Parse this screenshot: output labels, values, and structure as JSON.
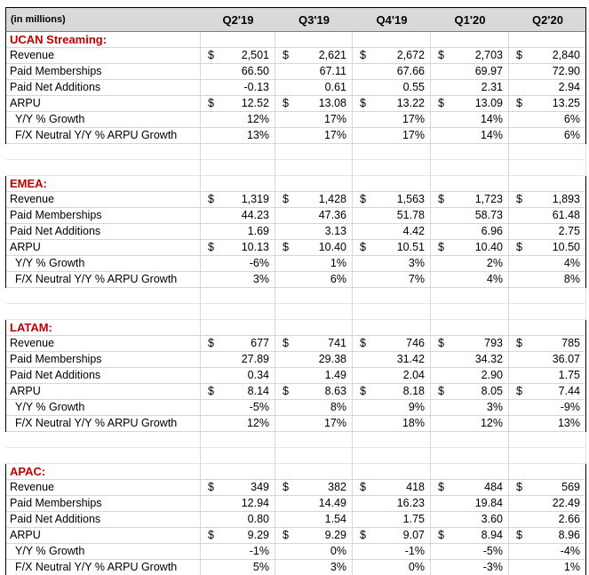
{
  "table": {
    "unit_label": "(in millions)",
    "currency_symbol": "$",
    "quarters": [
      "Q2'19",
      "Q3'19",
      "Q4'19",
      "Q1'20",
      "Q2'20"
    ],
    "colors": {
      "section_header_text": "#c00000",
      "header_background": "#d9d9d9",
      "gridline": "#d6d6d6",
      "outer_border": "#000000"
    },
    "sections": [
      {
        "name": "UCAN Streaming:",
        "rows": [
          {
            "label": "Revenue",
            "currency": true,
            "indent": false,
            "values": [
              "2,501",
              "2,621",
              "2,672",
              "2,703",
              "2,840"
            ]
          },
          {
            "label": "Paid Memberships",
            "currency": false,
            "indent": false,
            "values": [
              "66.50",
              "67.11",
              "67.66",
              "69.97",
              "72.90"
            ]
          },
          {
            "label": "Paid Net Additions",
            "currency": false,
            "indent": false,
            "values": [
              "-0.13",
              "0.61",
              "0.55",
              "2.31",
              "2.94"
            ]
          },
          {
            "label": "ARPU",
            "currency": true,
            "indent": false,
            "values": [
              "12.52",
              "13.08",
              "13.22",
              "13.09",
              "13.25"
            ]
          },
          {
            "label": "Y/Y % Growth",
            "currency": false,
            "indent": true,
            "values": [
              "12%",
              "17%",
              "17%",
              "14%",
              "6%"
            ]
          },
          {
            "label": "F/X Neutral Y/Y % ARPU Growth",
            "currency": false,
            "indent": true,
            "values": [
              "13%",
              "17%",
              "17%",
              "14%",
              "6%"
            ]
          }
        ]
      },
      {
        "name": "EMEA:",
        "rows": [
          {
            "label": "Revenue",
            "currency": true,
            "indent": false,
            "values": [
              "1,319",
              "1,428",
              "1,563",
              "1,723",
              "1,893"
            ]
          },
          {
            "label": "Paid Memberships",
            "currency": false,
            "indent": false,
            "values": [
              "44.23",
              "47.36",
              "51.78",
              "58.73",
              "61.48"
            ]
          },
          {
            "label": "Paid Net Additions",
            "currency": false,
            "indent": false,
            "values": [
              "1.69",
              "3.13",
              "4.42",
              "6.96",
              "2.75"
            ]
          },
          {
            "label": "ARPU",
            "currency": true,
            "indent": false,
            "values": [
              "10.13",
              "10.40",
              "10.51",
              "10.40",
              "10.50"
            ]
          },
          {
            "label": "Y/Y % Growth",
            "currency": false,
            "indent": true,
            "values": [
              "-6%",
              "1%",
              "3%",
              "2%",
              "4%"
            ]
          },
          {
            "label": "F/X Neutral Y/Y % ARPU Growth",
            "currency": false,
            "indent": true,
            "values": [
              "3%",
              "6%",
              "7%",
              "4%",
              "8%"
            ]
          }
        ]
      },
      {
        "name": "LATAM:",
        "rows": [
          {
            "label": "Revenue",
            "currency": true,
            "indent": false,
            "values": [
              "677",
              "741",
              "746",
              "793",
              "785"
            ]
          },
          {
            "label": "Paid Memberships",
            "currency": false,
            "indent": false,
            "values": [
              "27.89",
              "29.38",
              "31.42",
              "34.32",
              "36.07"
            ]
          },
          {
            "label": "Paid Net Additions",
            "currency": false,
            "indent": false,
            "values": [
              "0.34",
              "1.49",
              "2.04",
              "2.90",
              "1.75"
            ]
          },
          {
            "label": "ARPU",
            "currency": true,
            "indent": false,
            "values": [
              "8.14",
              "8.63",
              "8.18",
              "8.05",
              "7.44"
            ]
          },
          {
            "label": "Y/Y % Growth",
            "currency": false,
            "indent": true,
            "values": [
              "-5%",
              "8%",
              "9%",
              "3%",
              "-9%"
            ]
          },
          {
            "label": "F/X Neutral Y/Y % ARPU Growth",
            "currency": false,
            "indent": true,
            "values": [
              "12%",
              "17%",
              "18%",
              "12%",
              "13%"
            ]
          }
        ]
      },
      {
        "name": "APAC:",
        "rows": [
          {
            "label": "Revenue",
            "currency": true,
            "indent": false,
            "values": [
              "349",
              "382",
              "418",
              "484",
              "569"
            ]
          },
          {
            "label": "Paid Memberships",
            "currency": false,
            "indent": false,
            "values": [
              "12.94",
              "14.49",
              "16.23",
              "19.84",
              "22.49"
            ]
          },
          {
            "label": "Paid Net Additions",
            "currency": false,
            "indent": false,
            "values": [
              "0.80",
              "1.54",
              "1.75",
              "3.60",
              "2.66"
            ]
          },
          {
            "label": "ARPU",
            "currency": true,
            "indent": false,
            "values": [
              "9.29",
              "9.29",
              "9.07",
              "8.94",
              "8.96"
            ]
          },
          {
            "label": "Y/Y % Growth",
            "currency": false,
            "indent": true,
            "values": [
              "-1%",
              "0%",
              "-1%",
              "-5%",
              "-4%"
            ]
          },
          {
            "label": "F/X Neutral Y/Y % ARPU Growth",
            "currency": false,
            "indent": true,
            "values": [
              "5%",
              "3%",
              "0%",
              "-3%",
              "1%"
            ]
          }
        ]
      }
    ]
  },
  "chart_data": {
    "type": "table",
    "title": "(in millions)",
    "columns": [
      "Q2'19",
      "Q3'19",
      "Q4'19",
      "Q1'20",
      "Q2'20"
    ],
    "sections": [
      {
        "name": "UCAN Streaming",
        "rows": [
          {
            "metric": "Revenue ($)",
            "values": [
              2501,
              2621,
              2672,
              2703,
              2840
            ]
          },
          {
            "metric": "Paid Memberships",
            "values": [
              66.5,
              67.11,
              67.66,
              69.97,
              72.9
            ]
          },
          {
            "metric": "Paid Net Additions",
            "values": [
              -0.13,
              0.61,
              0.55,
              2.31,
              2.94
            ]
          },
          {
            "metric": "ARPU ($)",
            "values": [
              12.52,
              13.08,
              13.22,
              13.09,
              13.25
            ]
          },
          {
            "metric": "Y/Y % Growth",
            "values_pct": [
              12,
              17,
              17,
              14,
              6
            ]
          },
          {
            "metric": "F/X Neutral Y/Y % ARPU Growth",
            "values_pct": [
              13,
              17,
              17,
              14,
              6
            ]
          }
        ]
      },
      {
        "name": "EMEA",
        "rows": [
          {
            "metric": "Revenue ($)",
            "values": [
              1319,
              1428,
              1563,
              1723,
              1893
            ]
          },
          {
            "metric": "Paid Memberships",
            "values": [
              44.23,
              47.36,
              51.78,
              58.73,
              61.48
            ]
          },
          {
            "metric": "Paid Net Additions",
            "values": [
              1.69,
              3.13,
              4.42,
              6.96,
              2.75
            ]
          },
          {
            "metric": "ARPU ($)",
            "values": [
              10.13,
              10.4,
              10.51,
              10.4,
              10.5
            ]
          },
          {
            "metric": "Y/Y % Growth",
            "values_pct": [
              -6,
              1,
              3,
              2,
              4
            ]
          },
          {
            "metric": "F/X Neutral Y/Y % ARPU Growth",
            "values_pct": [
              3,
              6,
              7,
              4,
              8
            ]
          }
        ]
      },
      {
        "name": "LATAM",
        "rows": [
          {
            "metric": "Revenue ($)",
            "values": [
              677,
              741,
              746,
              793,
              785
            ]
          },
          {
            "metric": "Paid Memberships",
            "values": [
              27.89,
              29.38,
              31.42,
              34.32,
              36.07
            ]
          },
          {
            "metric": "Paid Net Additions",
            "values": [
              0.34,
              1.49,
              2.04,
              2.9,
              1.75
            ]
          },
          {
            "metric": "ARPU ($)",
            "values": [
              8.14,
              8.63,
              8.18,
              8.05,
              7.44
            ]
          },
          {
            "metric": "Y/Y % Growth",
            "values_pct": [
              -5,
              8,
              9,
              3,
              -9
            ]
          },
          {
            "metric": "F/X Neutral Y/Y % ARPU Growth",
            "values_pct": [
              12,
              17,
              18,
              12,
              13
            ]
          }
        ]
      },
      {
        "name": "APAC",
        "rows": [
          {
            "metric": "Revenue ($)",
            "values": [
              349,
              382,
              418,
              484,
              569
            ]
          },
          {
            "metric": "Paid Memberships",
            "values": [
              12.94,
              14.49,
              16.23,
              19.84,
              22.49
            ]
          },
          {
            "metric": "Paid Net Additions",
            "values": [
              0.8,
              1.54,
              1.75,
              3.6,
              2.66
            ]
          },
          {
            "metric": "ARPU ($)",
            "values": [
              9.29,
              9.29,
              9.07,
              8.94,
              8.96
            ]
          },
          {
            "metric": "Y/Y % Growth",
            "values_pct": [
              -1,
              0,
              -1,
              -5,
              -4
            ]
          },
          {
            "metric": "F/X Neutral Y/Y % ARPU Growth",
            "values_pct": [
              5,
              3,
              0,
              -3,
              1
            ]
          }
        ]
      }
    ]
  }
}
